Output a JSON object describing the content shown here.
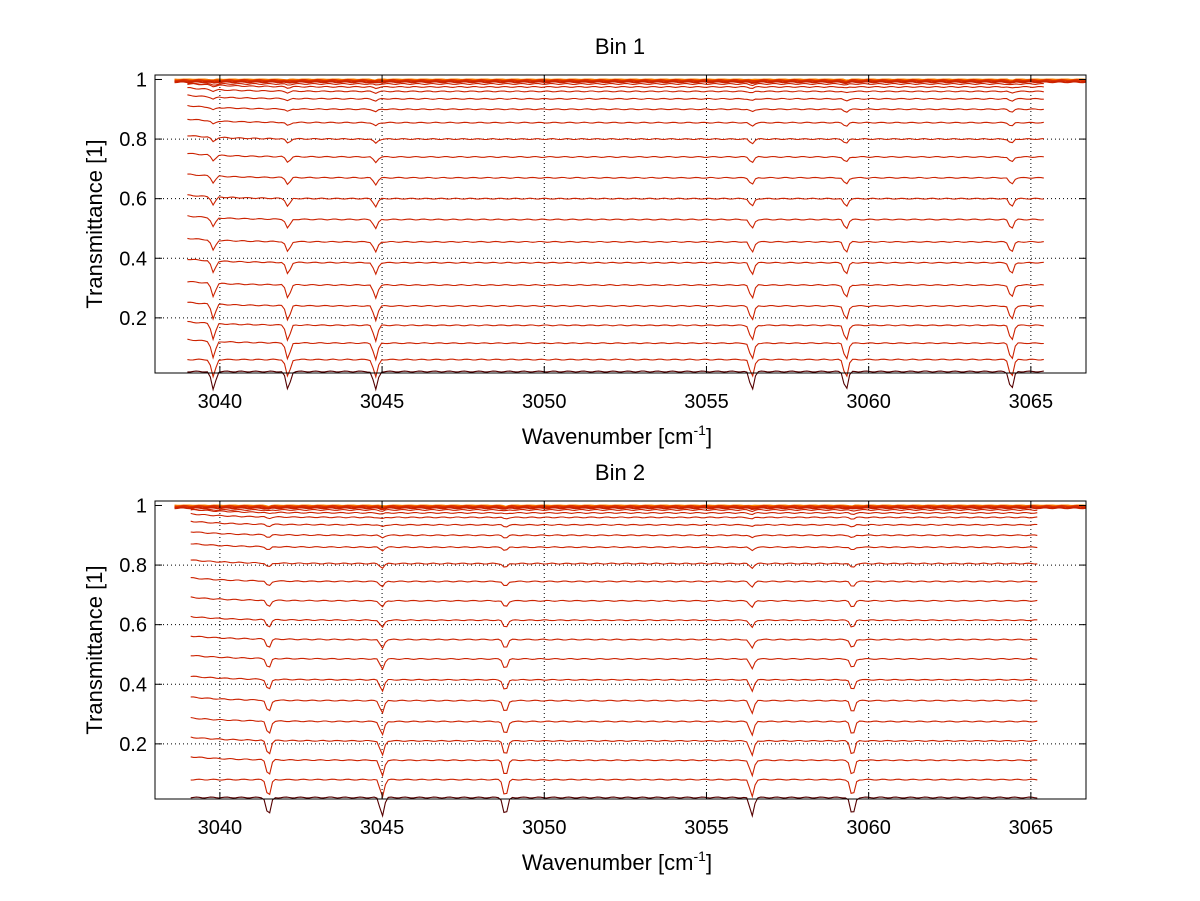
{
  "chart_data": [
    {
      "type": "line",
      "title": "Bin 1",
      "xlabel_main": "Wavenumber [cm",
      "xlabel_sup": "-1",
      "xlabel_end": "]",
      "ylabel": "Transmittance [1]",
      "xlim": [
        3038,
        3066.7
      ],
      "ylim": [
        0.015,
        1.015
      ],
      "xticks": [
        3040,
        3045,
        3050,
        3055,
        3060,
        3065
      ],
      "yticks": [
        0.2,
        0.4,
        0.6,
        0.8,
        1
      ],
      "ytick_labels": [
        "0.2",
        "0.4",
        "0.6",
        "0.8",
        "1"
      ],
      "grid": true,
      "line_color": "#cc2200",
      "baselines": [
        1.0,
        0.997,
        0.992,
        0.985,
        0.975,
        0.96,
        0.935,
        0.9,
        0.855,
        0.8,
        0.74,
        0.67,
        0.6,
        0.53,
        0.455,
        0.385,
        0.31,
        0.24,
        0.175,
        0.115,
        0.06,
        0.02
      ],
      "dips": [
        3039.8,
        3042.1,
        3044.8,
        3056.4,
        3059.3,
        3064.4
      ],
      "x_start": 3039.0,
      "x_end": 3065.4
    },
    {
      "type": "line",
      "title": "Bin 2",
      "xlabel_main": "Wavenumber [cm",
      "xlabel_sup": "-1",
      "xlabel_end": "]",
      "ylabel": "Transmittance [1]",
      "xlim": [
        3038,
        3066.7
      ],
      "ylim": [
        0.015,
        1.015
      ],
      "xticks": [
        3040,
        3045,
        3050,
        3055,
        3060,
        3065
      ],
      "yticks": [
        0.2,
        0.4,
        0.6,
        0.8,
        1
      ],
      "ytick_labels": [
        "0.2",
        "0.4",
        "0.6",
        "0.8",
        "1"
      ],
      "grid": true,
      "line_color": "#cc2200",
      "baselines": [
        1.0,
        0.997,
        0.992,
        0.985,
        0.975,
        0.96,
        0.935,
        0.9,
        0.86,
        0.805,
        0.745,
        0.68,
        0.615,
        0.55,
        0.485,
        0.415,
        0.345,
        0.275,
        0.21,
        0.145,
        0.08,
        0.02
      ],
      "dips": [
        3041.5,
        3045.0,
        3048.8,
        3056.4,
        3059.5
      ],
      "x_start": 3039.1,
      "x_end": 3065.2
    }
  ]
}
